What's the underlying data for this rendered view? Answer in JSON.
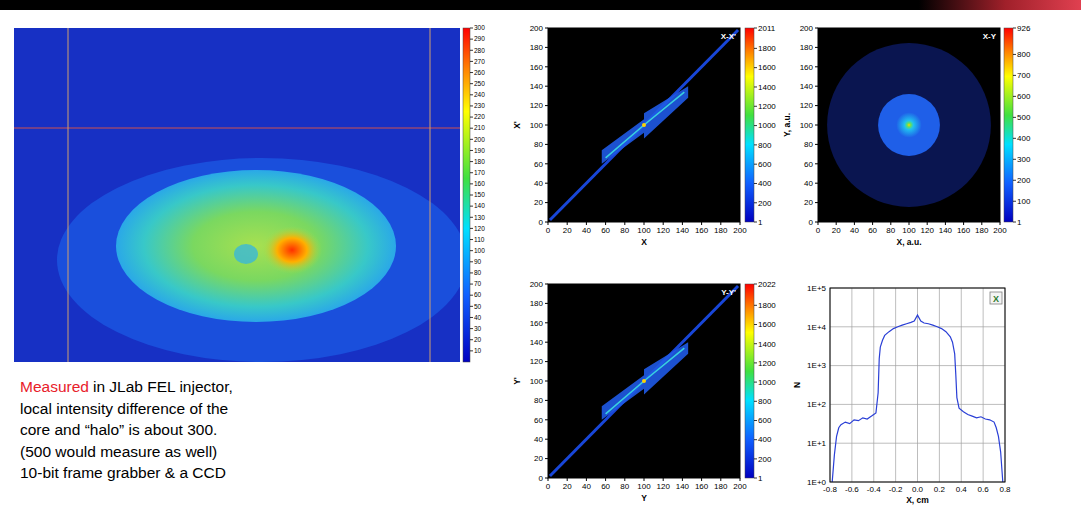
{
  "chart_data": [
    {
      "type": "heatmap",
      "tick_labels": false,
      "colorbar": {
        "range": [
          0,
          300
        ],
        "ticks": [
          10,
          20,
          30,
          40,
          50,
          60,
          70,
          80,
          90,
          100,
          110,
          120,
          130,
          140,
          150,
          160,
          170,
          180,
          190,
          200,
          210,
          220,
          230,
          240,
          250,
          260,
          270,
          280,
          290,
          300
        ]
      }
    },
    {
      "type": "heatmap",
      "title": "X-X'",
      "x_label": "X",
      "y_label": "X'",
      "xlim": [
        0,
        200
      ],
      "ylim": [
        0,
        200
      ],
      "xticks": [
        0,
        20,
        40,
        60,
        80,
        100,
        120,
        140,
        160,
        180,
        200
      ],
      "yticks": [
        0,
        20,
        40,
        60,
        80,
        100,
        120,
        140,
        160,
        180,
        200
      ],
      "colorbar": {
        "range": [
          1,
          2011
        ],
        "ticks": [
          1,
          200,
          400,
          600,
          800,
          1000,
          1200,
          1400,
          1600,
          1800,
          2011
        ]
      }
    },
    {
      "type": "heatmap",
      "title": "X-Y",
      "x_label": "X, a.u.",
      "y_label": "Y, a.u.",
      "xlim": [
        0,
        200
      ],
      "ylim": [
        0,
        200
      ],
      "xticks": [
        0,
        20,
        40,
        60,
        80,
        100,
        120,
        140,
        160,
        180,
        200
      ],
      "yticks": [
        0,
        20,
        40,
        60,
        80,
        100,
        120,
        140,
        160,
        180,
        200
      ],
      "colorbar": {
        "range": [
          1,
          926
        ],
        "ticks": [
          1,
          100,
          200,
          300,
          400,
          500,
          600,
          700,
          800,
          926
        ]
      }
    },
    {
      "type": "heatmap",
      "title": "Y-Y'",
      "x_label": "Y",
      "y_label": "Y'",
      "xlim": [
        0,
        200
      ],
      "ylim": [
        0,
        200
      ],
      "xticks": [
        0,
        20,
        40,
        60,
        80,
        100,
        120,
        140,
        160,
        180,
        200
      ],
      "yticks": [
        0,
        20,
        40,
        60,
        80,
        100,
        120,
        140,
        160,
        180,
        200
      ],
      "colorbar": {
        "range": [
          1,
          2022
        ],
        "ticks": [
          1,
          200,
          400,
          600,
          800,
          1000,
          1200,
          1400,
          1600,
          1800,
          2022
        ]
      }
    },
    {
      "type": "line",
      "x_label": "X, cm",
      "y_label": "N",
      "log": "y",
      "grid": true,
      "legend": "top-right",
      "xlim": [
        -0.8,
        0.8
      ],
      "xticks": [
        -0.8,
        -0.6,
        -0.4,
        -0.2,
        {
          "value": 0,
          "label": "0.0"
        },
        0.2,
        0.4,
        0.6,
        0.8
      ],
      "ylim": [
        1,
        100000
      ],
      "yticks": [
        {
          "value": 1,
          "label": "1E+0"
        },
        {
          "value": 10,
          "label": "1E+1"
        },
        {
          "value": 100,
          "label": "1E+2"
        },
        {
          "value": 1000,
          "label": "1E+3"
        },
        {
          "value": 10000,
          "label": "1E+4"
        },
        {
          "value": 100000,
          "label": "1E+5"
        }
      ],
      "x": [
        -0.78,
        -0.76,
        -0.74,
        -0.72,
        -0.7,
        -0.66,
        -0.62,
        -0.58,
        -0.54,
        -0.5,
        -0.46,
        -0.42,
        -0.4,
        -0.38,
        -0.36,
        -0.35,
        -0.34,
        -0.32,
        -0.3,
        -0.26,
        -0.22,
        -0.18,
        -0.14,
        -0.1,
        -0.06,
        -0.03,
        0,
        0.03,
        0.06,
        0.1,
        0.14,
        0.18,
        0.22,
        0.26,
        0.3,
        0.32,
        0.34,
        0.35,
        0.36,
        0.38,
        0.42,
        0.46,
        0.5,
        0.54,
        0.58,
        0.62,
        0.66,
        0.7,
        0.72,
        0.74,
        0.76,
        0.78
      ],
      "series": [
        {
          "name": "X",
          "color": "#2a3fd6",
          "values": [
            1,
            5,
            15,
            25,
            30,
            35,
            32,
            40,
            38,
            45,
            42,
            50,
            55,
            60,
            200,
            1500,
            3000,
            4500,
            6000,
            7500,
            9000,
            10000,
            11000,
            12000,
            13000,
            14000,
            20000,
            14000,
            12500,
            12000,
            11000,
            10000,
            9000,
            7500,
            5500,
            4000,
            2000,
            600,
            150,
            80,
            65,
            55,
            50,
            45,
            48,
            42,
            40,
            35,
            25,
            15,
            6,
            1
          ]
        }
      ]
    }
  ],
  "caption": {
    "lead": "Measured",
    "lead_color": "#e8202a",
    "lines": [
      "in JLab FEL injector,",
      "local intensity difference of the",
      "core and “halo” is about 300.",
      "(500 would measure as well)",
      "10-bit frame grabber & a CCD"
    ]
  }
}
